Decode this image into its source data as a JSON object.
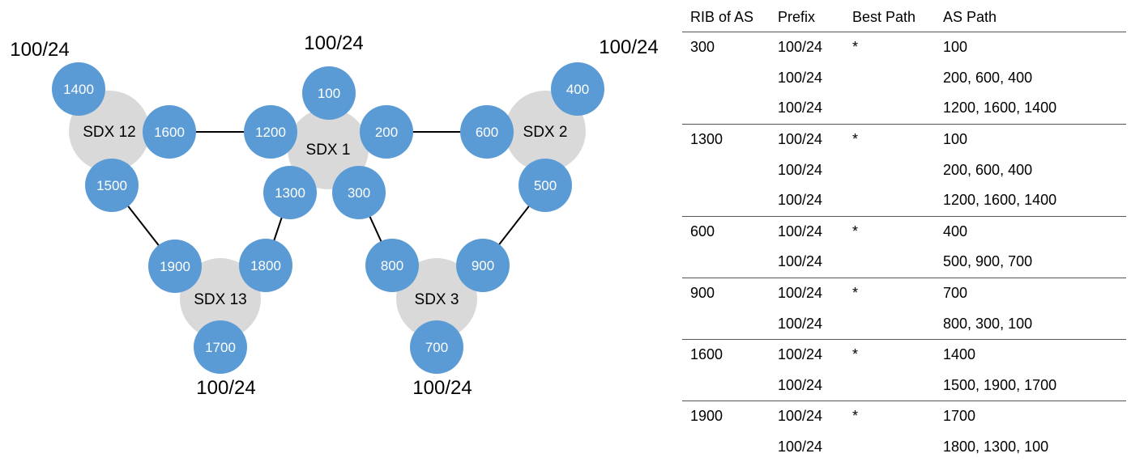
{
  "diagram": {
    "sdx": [
      {
        "id": "sdx12",
        "label": "SDX 12"
      },
      {
        "id": "sdx1",
        "label": "SDX 1"
      },
      {
        "id": "sdx2",
        "label": "SDX 2"
      },
      {
        "id": "sdx13",
        "label": "SDX 13"
      },
      {
        "id": "sdx3",
        "label": "SDX 3"
      }
    ],
    "as_nodes": [
      {
        "id": "as1400",
        "label": "1400"
      },
      {
        "id": "as1600",
        "label": "1600"
      },
      {
        "id": "as1500",
        "label": "1500"
      },
      {
        "id": "as100",
        "label": "100"
      },
      {
        "id": "as1200",
        "label": "1200"
      },
      {
        "id": "as200",
        "label": "200"
      },
      {
        "id": "as1300",
        "label": "1300"
      },
      {
        "id": "as300",
        "label": "300"
      },
      {
        "id": "as400",
        "label": "400"
      },
      {
        "id": "as600",
        "label": "600"
      },
      {
        "id": "as500",
        "label": "500"
      },
      {
        "id": "as1900",
        "label": "1900"
      },
      {
        "id": "as1800",
        "label": "1800"
      },
      {
        "id": "as1700",
        "label": "1700"
      },
      {
        "id": "as800",
        "label": "800"
      },
      {
        "id": "as900",
        "label": "900"
      },
      {
        "id": "as700",
        "label": "700"
      }
    ],
    "links": [
      [
        "as1600",
        "as1200"
      ],
      [
        "as200",
        "as600"
      ],
      [
        "as1500",
        "as1900"
      ],
      [
        "as1300",
        "as1800"
      ],
      [
        "as300",
        "as800"
      ],
      [
        "as500",
        "as900"
      ]
    ],
    "prefix_labels": [
      {
        "id": "p1400",
        "text": "100/24"
      },
      {
        "id": "p100",
        "text": "100/24"
      },
      {
        "id": "p400",
        "text": "100/24"
      },
      {
        "id": "p1700",
        "text": "100/24"
      },
      {
        "id": "p700",
        "text": "100/24"
      }
    ]
  },
  "table": {
    "headers": [
      "RIB of AS",
      "Prefix",
      "Best Path",
      "AS Path"
    ],
    "groups": [
      {
        "as": "300",
        "rows": [
          {
            "prefix": "100/24",
            "best": "*",
            "path": "100"
          },
          {
            "prefix": "100/24",
            "best": "",
            "path": "200, 600, 400"
          },
          {
            "prefix": "100/24",
            "best": "",
            "path": "1200, 1600, 1400"
          }
        ]
      },
      {
        "as": "1300",
        "rows": [
          {
            "prefix": "100/24",
            "best": "*",
            "path": "100"
          },
          {
            "prefix": "100/24",
            "best": "",
            "path": "200, 600, 400"
          },
          {
            "prefix": "100/24",
            "best": "",
            "path": "1200, 1600, 1400"
          }
        ]
      },
      {
        "as": "600",
        "rows": [
          {
            "prefix": "100/24",
            "best": "*",
            "path": "400"
          },
          {
            "prefix": "100/24",
            "best": "",
            "path": "500, 900, 700"
          }
        ]
      },
      {
        "as": "900",
        "rows": [
          {
            "prefix": "100/24",
            "best": "*",
            "path": "700"
          },
          {
            "prefix": "100/24",
            "best": "",
            "path": "800, 300, 100"
          }
        ]
      },
      {
        "as": "1600",
        "rows": [
          {
            "prefix": "100/24",
            "best": "*",
            "path": "1400"
          },
          {
            "prefix": "100/24",
            "best": "",
            "path": "1500, 1900, 1700"
          }
        ]
      },
      {
        "as": "1900",
        "rows": [
          {
            "prefix": "100/24",
            "best": "*",
            "path": "1700"
          },
          {
            "prefix": "100/24",
            "best": "",
            "path": "1800, 1300, 100"
          }
        ]
      }
    ]
  }
}
